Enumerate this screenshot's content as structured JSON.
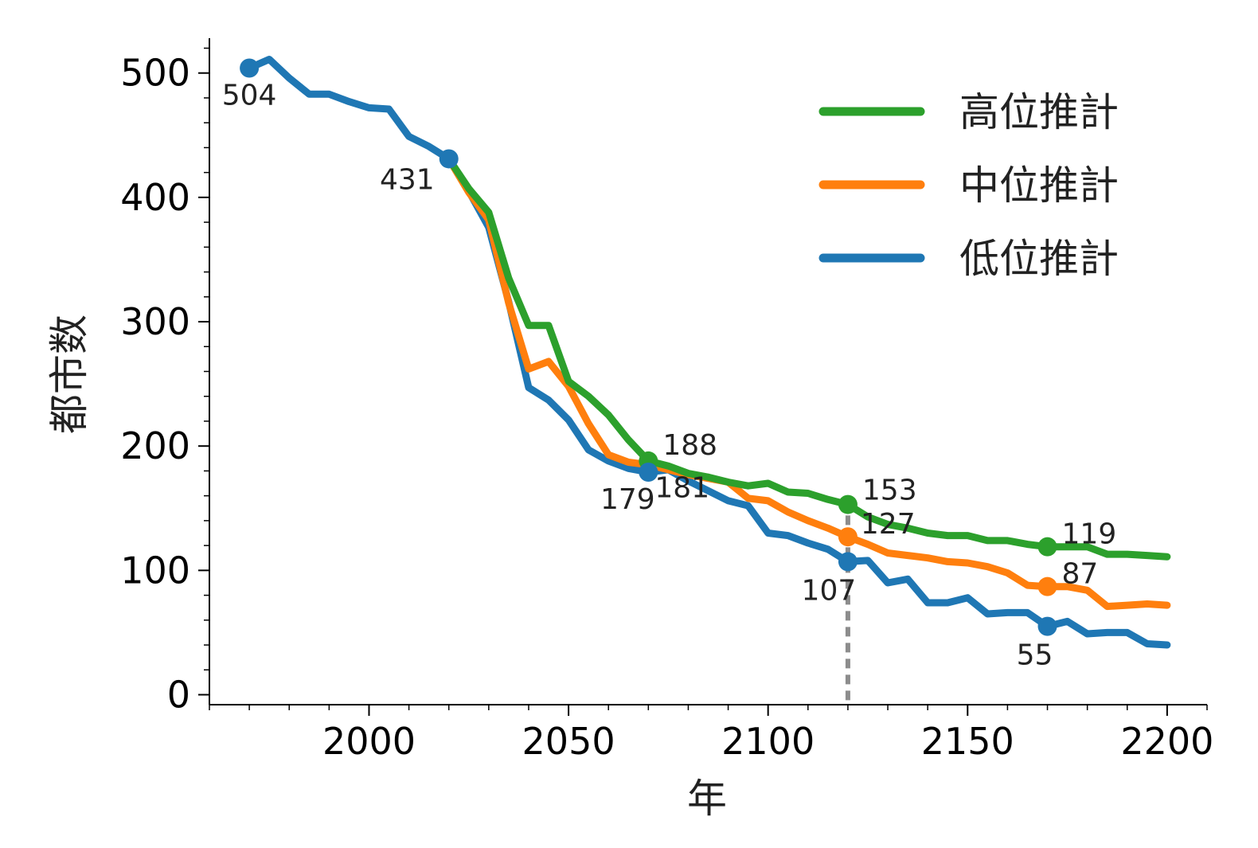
{
  "chart_data": {
    "type": "line",
    "xlabel": "年",
    "ylabel": "都市数",
    "xlim": [
      1960,
      2210
    ],
    "ylim": [
      -8,
      528
    ],
    "xticks": [
      2000,
      2050,
      2100,
      2150,
      2200
    ],
    "yticks": [
      0,
      100,
      200,
      300,
      400,
      500
    ],
    "legend_position": "top-right",
    "grid": false,
    "reference_line": {
      "x": 2120,
      "y_top": 157,
      "color": "#8c8c8c",
      "style": "dashed"
    },
    "series": [
      {
        "name": "高位推計",
        "color": "#2ca02c",
        "x": [
          2020,
          2025,
          2030,
          2035,
          2040,
          2045,
          2050,
          2055,
          2060,
          2065,
          2070,
          2075,
          2080,
          2085,
          2090,
          2095,
          2100,
          2105,
          2110,
          2115,
          2120,
          2125,
          2130,
          2135,
          2140,
          2145,
          2150,
          2155,
          2160,
          2165,
          2170,
          2175,
          2180,
          2185,
          2190,
          2195,
          2200
        ],
        "y": [
          431,
          407,
          388,
          335,
          297,
          297,
          252,
          240,
          225,
          205,
          188,
          184,
          178,
          175,
          171,
          168,
          170,
          163,
          162,
          157,
          153,
          143,
          137,
          134,
          130,
          128,
          128,
          124,
          124,
          121,
          119,
          119,
          119,
          113,
          113,
          112,
          111
        ]
      },
      {
        "name": "中位推計",
        "color": "#ff7f0e",
        "x": [
          2020,
          2025,
          2030,
          2035,
          2040,
          2045,
          2050,
          2055,
          2060,
          2065,
          2070,
          2075,
          2080,
          2085,
          2090,
          2095,
          2100,
          2105,
          2110,
          2115,
          2120,
          2125,
          2130,
          2135,
          2140,
          2145,
          2150,
          2155,
          2160,
          2165,
          2170,
          2175,
          2180,
          2185,
          2190,
          2195,
          2200
        ],
        "y": [
          431,
          404,
          382,
          315,
          262,
          268,
          248,
          218,
          193,
          187,
          185,
          181,
          177,
          174,
          171,
          158,
          156,
          147,
          140,
          134,
          127,
          121,
          114,
          112,
          110,
          107,
          106,
          103,
          98,
          88,
          87,
          87,
          84,
          71,
          72,
          73,
          72
        ]
      },
      {
        "name": "低位推計",
        "color": "#1f77b4",
        "x": [
          1970,
          1975,
          1980,
          1985,
          1990,
          1995,
          2000,
          2005,
          2010,
          2015,
          2020,
          2025,
          2030,
          2035,
          2040,
          2045,
          2050,
          2055,
          2060,
          2065,
          2070,
          2075,
          2080,
          2085,
          2090,
          2095,
          2100,
          2105,
          2110,
          2115,
          2120,
          2125,
          2130,
          2135,
          2140,
          2145,
          2150,
          2155,
          2160,
          2165,
          2170,
          2175,
          2180,
          2185,
          2190,
          2195,
          2200
        ],
        "y": [
          504,
          511,
          496,
          483,
          483,
          477,
          472,
          471,
          449,
          441,
          431,
          405,
          376,
          316,
          247,
          237,
          221,
          197,
          188,
          182,
          179,
          181,
          172,
          164,
          156,
          152,
          130,
          128,
          122,
          117,
          107,
          108,
          90,
          93,
          74,
          74,
          78,
          65,
          66,
          66,
          55,
          59,
          49,
          50,
          50,
          41,
          40
        ]
      }
    ],
    "annotations": [
      {
        "series": 2,
        "x": 1970,
        "y": 504,
        "text": "504"
      },
      {
        "series": 2,
        "x": 2020,
        "y": 431,
        "text": "431"
      },
      {
        "series": 0,
        "x": 2070,
        "y": 188,
        "text": "188"
      },
      {
        "series": 2,
        "x": 2070,
        "y": 179,
        "text": "179"
      },
      {
        "series": 2,
        "x": 2076,
        "y": 178,
        "text": "181",
        "no_marker": true
      },
      {
        "series": 0,
        "x": 2120,
        "y": 153,
        "text": "153"
      },
      {
        "series": 1,
        "x": 2120,
        "y": 127,
        "text": "127"
      },
      {
        "series": 2,
        "x": 2120,
        "y": 107,
        "text": "107"
      },
      {
        "series": 0,
        "x": 2170,
        "y": 119,
        "text": "119"
      },
      {
        "series": 1,
        "x": 2170,
        "y": 87,
        "text": "87"
      },
      {
        "series": 2,
        "x": 2170,
        "y": 55,
        "text": "55"
      }
    ]
  }
}
